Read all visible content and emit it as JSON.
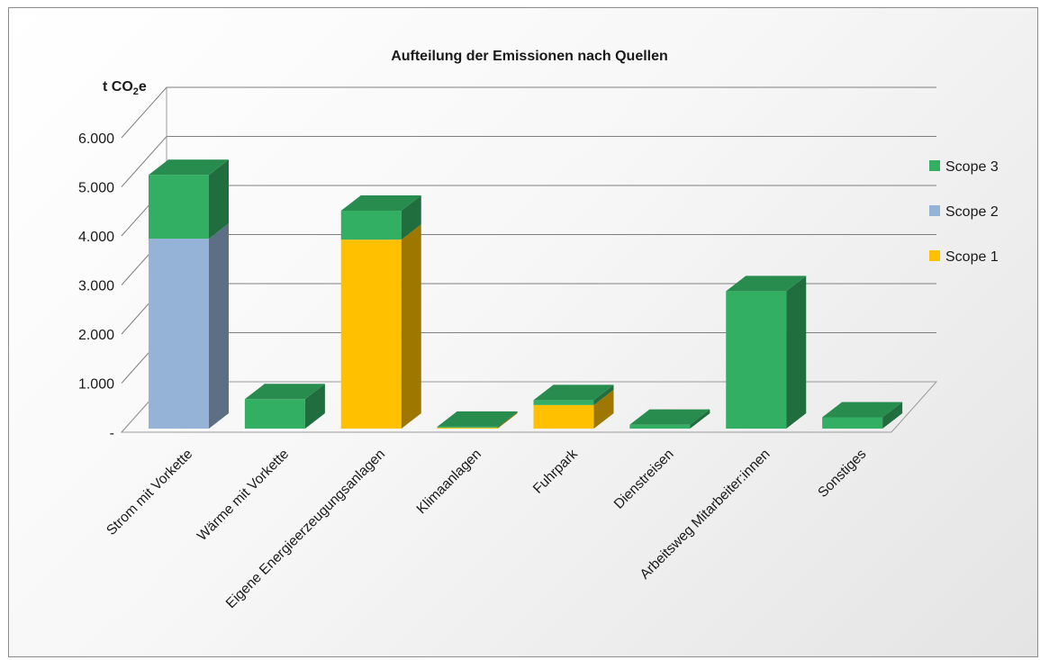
{
  "chart_data": {
    "type": "bar",
    "stacked": true,
    "three_d": true,
    "title": "Aufteilung der Emissionen nach Quellen",
    "ylabel": "t CO2e",
    "ylim": [
      0,
      6000
    ],
    "yticks": [
      0,
      1000,
      2000,
      3000,
      4000,
      5000,
      6000
    ],
    "ytick_labels": [
      "-",
      "1.000",
      "2.000",
      "3.000",
      "4.000",
      "5.000",
      "6.000"
    ],
    "grid": true,
    "legend_position": "right",
    "categories": [
      "Strom mit Vorkette",
      "Wärme mit Vorkette",
      "Eigene Energieerzeugungsanlagen",
      "Klimaanlagen",
      "Fuhrpark",
      "Dienstreisen",
      "Arbeitsweg Mitarbeiter:innen",
      "Sonstiges"
    ],
    "series": [
      {
        "name": "Scope 1",
        "color": "#FFC000",
        "values": [
          0,
          0,
          3850,
          20,
          480,
          0,
          0,
          0
        ]
      },
      {
        "name": "Scope 2",
        "color": "#95B3D7",
        "values": [
          3870,
          0,
          0,
          0,
          0,
          0,
          0,
          0
        ]
      },
      {
        "name": "Scope 3",
        "color": "#33AF63",
        "values": [
          1300,
          600,
          590,
          20,
          100,
          80,
          2800,
          230
        ]
      }
    ],
    "legend_order": [
      "Scope 3",
      "Scope 2",
      "Scope 1"
    ]
  }
}
